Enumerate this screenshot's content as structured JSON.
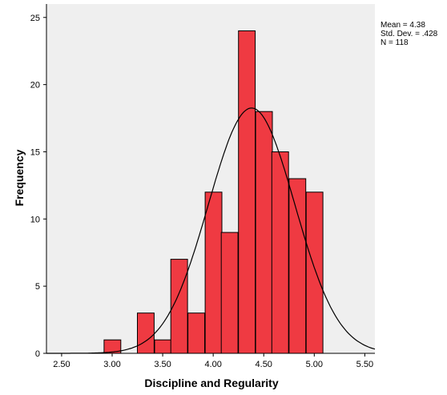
{
  "chart_data": {
    "type": "bar",
    "subtype": "histogram",
    "xlabel": "Discipline and Regularity",
    "ylabel": "Frequency",
    "xlim": [
      2.35,
      5.6
    ],
    "ylim": [
      0,
      26
    ],
    "xticks": [
      "2.50",
      "3.00",
      "3.50",
      "4.00",
      "4.50",
      "5.00",
      "5.50"
    ],
    "yticks": [
      "0",
      "5",
      "10",
      "15",
      "20",
      "25"
    ],
    "bin_width": 0.166,
    "bins": [
      {
        "start": 2.92,
        "value": 1
      },
      {
        "start": 3.25,
        "value": 3
      },
      {
        "start": 3.42,
        "value": 1
      },
      {
        "start": 3.58,
        "value": 7
      },
      {
        "start": 3.75,
        "value": 3
      },
      {
        "start": 3.92,
        "value": 12
      },
      {
        "start": 4.08,
        "value": 9
      },
      {
        "start": 4.25,
        "value": 24
      },
      {
        "start": 4.42,
        "value": 18
      },
      {
        "start": 4.58,
        "value": 15
      },
      {
        "start": 4.75,
        "value": 13
      },
      {
        "start": 4.92,
        "value": 12
      }
    ],
    "normal_curve": {
      "mean": 4.38,
      "sd": 0.428,
      "n": 118
    },
    "stats_text": [
      "Mean = 4.38",
      "Std. Dev. = .428",
      "N = 118"
    ],
    "bar_color": "#ef3a42",
    "plot_bg": "#efefef",
    "grid": false
  }
}
